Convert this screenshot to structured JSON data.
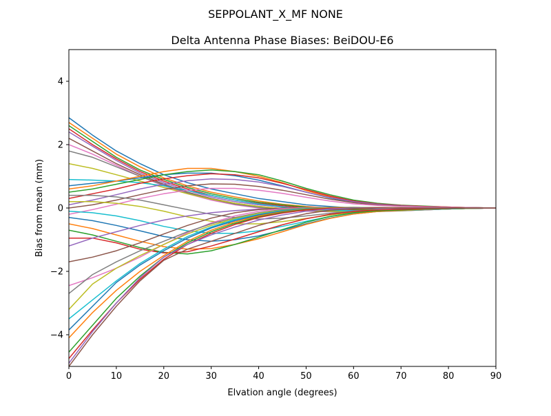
{
  "chart_data": {
    "type": "line",
    "suptitle": "SEPPOLANT_X_MF  NONE",
    "title": "Delta Antenna Phase Biases: BeiDOU-E6",
    "xlabel": "Elvation angle (degrees)",
    "ylabel": "Bias from mean (mm)",
    "xlim": [
      0,
      90
    ],
    "ylim": [
      -5,
      5
    ],
    "xticks": [
      0,
      10,
      20,
      30,
      40,
      50,
      60,
      70,
      80,
      90
    ],
    "yticks": [
      -4,
      -2,
      0,
      2,
      4
    ],
    "xtick_labels": [
      "0",
      "10",
      "20",
      "30",
      "40",
      "50",
      "60",
      "70",
      "80",
      "90"
    ],
    "ytick_labels": [
      "−4",
      "−2",
      "0",
      "2",
      "4"
    ],
    "grid": false,
    "legend": "none",
    "color_cycle": [
      "#1f77b4",
      "#ff7f0e",
      "#2ca02c",
      "#d62728",
      "#9467bd",
      "#8c564b",
      "#e377c2",
      "#7f7f7f",
      "#bcbd22",
      "#17becf"
    ],
    "x": [
      0,
      5,
      10,
      15,
      20,
      25,
      30,
      35,
      40,
      45,
      50,
      55,
      60,
      65,
      70,
      75,
      80,
      85,
      90
    ],
    "series": [
      {
        "values": [
          2.85,
          2.3,
          1.8,
          1.4,
          1.05,
          0.8,
          0.6,
          0.45,
          0.3,
          0.2,
          0.1,
          0.05,
          0.0,
          -0.05,
          -0.05,
          -0.03,
          -0.02,
          -0.01,
          0.0
        ]
      },
      {
        "values": [
          2.7,
          2.2,
          1.7,
          1.3,
          0.95,
          0.7,
          0.5,
          0.35,
          0.22,
          0.12,
          0.05,
          0.0,
          -0.04,
          -0.06,
          -0.06,
          -0.04,
          -0.02,
          -0.01,
          0.0
        ]
      },
      {
        "values": [
          2.6,
          2.1,
          1.6,
          1.2,
          0.9,
          0.65,
          0.45,
          0.3,
          0.18,
          0.1,
          0.03,
          -0.02,
          -0.05,
          -0.07,
          -0.06,
          -0.04,
          -0.02,
          -0.01,
          0.0
        ]
      },
      {
        "values": [
          2.5,
          2.0,
          1.55,
          1.15,
          0.85,
          0.6,
          0.4,
          0.25,
          0.15,
          0.07,
          0.0,
          -0.04,
          -0.07,
          -0.08,
          -0.07,
          -0.05,
          -0.03,
          -0.01,
          0.0
        ]
      },
      {
        "values": [
          2.4,
          1.95,
          1.5,
          1.1,
          0.8,
          0.55,
          0.35,
          0.2,
          0.1,
          0.03,
          -0.02,
          -0.05,
          -0.08,
          -0.09,
          -0.08,
          -0.05,
          -0.03,
          -0.01,
          0.0
        ]
      },
      {
        "values": [
          2.2,
          1.8,
          1.4,
          1.05,
          0.75,
          0.5,
          0.3,
          0.15,
          0.05,
          -0.02,
          -0.06,
          -0.09,
          -0.1,
          -0.1,
          -0.08,
          -0.06,
          -0.03,
          -0.01,
          0.0
        ]
      },
      {
        "values": [
          2.0,
          1.7,
          1.35,
          1.0,
          0.7,
          0.45,
          0.25,
          0.1,
          0.0,
          -0.06,
          -0.1,
          -0.12,
          -0.12,
          -0.11,
          -0.09,
          -0.06,
          -0.03,
          -0.01,
          0.0
        ]
      },
      {
        "values": [
          1.8,
          1.6,
          1.3,
          1.0,
          0.72,
          0.48,
          0.28,
          0.12,
          0.02,
          -0.05,
          -0.09,
          -0.11,
          -0.12,
          -0.11,
          -0.09,
          -0.06,
          -0.03,
          -0.01,
          0.0
        ]
      },
      {
        "values": [
          1.4,
          1.25,
          1.05,
          0.85,
          0.65,
          0.45,
          0.28,
          0.15,
          0.05,
          -0.02,
          -0.07,
          -0.1,
          -0.11,
          -0.1,
          -0.08,
          -0.05,
          -0.03,
          -0.01,
          0.0
        ]
      },
      {
        "values": [
          0.9,
          0.88,
          0.85,
          0.8,
          0.7,
          0.55,
          0.4,
          0.25,
          0.13,
          0.04,
          -0.03,
          -0.07,
          -0.09,
          -0.09,
          -0.07,
          -0.05,
          -0.03,
          -0.01,
          0.0
        ]
      },
      {
        "values": [
          0.7,
          0.78,
          0.85,
          0.95,
          1.05,
          1.1,
          1.1,
          1.02,
          0.88,
          0.7,
          0.5,
          0.32,
          0.18,
          0.1,
          0.06,
          0.04,
          0.02,
          0.01,
          0.0
        ]
      },
      {
        "values": [
          0.6,
          0.7,
          0.85,
          1.0,
          1.15,
          1.25,
          1.25,
          1.15,
          1.0,
          0.8,
          0.55,
          0.35,
          0.2,
          0.12,
          0.08,
          0.05,
          0.03,
          0.01,
          0.0
        ]
      },
      {
        "values": [
          0.5,
          0.6,
          0.75,
          0.9,
          1.05,
          1.15,
          1.2,
          1.15,
          1.05,
          0.85,
          0.62,
          0.42,
          0.25,
          0.15,
          0.09,
          0.06,
          0.03,
          0.01,
          0.0
        ]
      },
      {
        "values": [
          0.3,
          0.45,
          0.6,
          0.78,
          0.92,
          1.02,
          1.08,
          1.05,
          0.95,
          0.78,
          0.58,
          0.38,
          0.22,
          0.13,
          0.08,
          0.05,
          0.03,
          0.01,
          0.0
        ]
      },
      {
        "values": [
          0.1,
          0.25,
          0.42,
          0.6,
          0.75,
          0.86,
          0.92,
          0.9,
          0.82,
          0.68,
          0.5,
          0.33,
          0.2,
          0.12,
          0.07,
          0.04,
          0.02,
          0.01,
          0.0
        ]
      },
      {
        "values": [
          0.0,
          0.1,
          0.25,
          0.42,
          0.58,
          0.7,
          0.76,
          0.75,
          0.68,
          0.56,
          0.42,
          0.28,
          0.17,
          0.1,
          0.06,
          0.04,
          0.02,
          0.01,
          0.0
        ]
      },
      {
        "values": [
          -0.2,
          -0.05,
          0.12,
          0.3,
          0.45,
          0.56,
          0.62,
          0.62,
          0.56,
          0.46,
          0.34,
          0.22,
          0.13,
          0.08,
          0.05,
          0.03,
          0.02,
          0.01,
          0.0
        ]
      },
      {
        "values": [
          0.4,
          0.4,
          0.35,
          0.25,
          0.1,
          -0.05,
          -0.2,
          -0.3,
          -0.35,
          -0.32,
          -0.25,
          -0.17,
          -0.1,
          -0.06,
          -0.04,
          -0.02,
          -0.01,
          0.0,
          0.0
        ]
      },
      {
        "values": [
          0.2,
          0.2,
          0.15,
          0.05,
          -0.1,
          -0.28,
          -0.42,
          -0.5,
          -0.5,
          -0.43,
          -0.33,
          -0.22,
          -0.13,
          -0.08,
          -0.05,
          -0.03,
          -0.01,
          0.0,
          0.0
        ]
      },
      {
        "values": [
          -0.1,
          -0.15,
          -0.25,
          -0.4,
          -0.58,
          -0.72,
          -0.8,
          -0.8,
          -0.72,
          -0.58,
          -0.42,
          -0.27,
          -0.16,
          -0.1,
          -0.06,
          -0.04,
          -0.02,
          -0.01,
          0.0
        ]
      },
      {
        "values": [
          -0.3,
          -0.4,
          -0.55,
          -0.72,
          -0.9,
          -1.0,
          -1.05,
          -1.0,
          -0.88,
          -0.7,
          -0.5,
          -0.32,
          -0.19,
          -0.11,
          -0.07,
          -0.04,
          -0.02,
          -0.01,
          0.0
        ]
      },
      {
        "values": [
          -0.5,
          -0.65,
          -0.85,
          -1.05,
          -1.22,
          -1.3,
          -1.28,
          -1.15,
          -0.97,
          -0.75,
          -0.52,
          -0.33,
          -0.19,
          -0.11,
          -0.07,
          -0.04,
          -0.02,
          -0.01,
          0.0
        ]
      },
      {
        "values": [
          -0.7,
          -0.85,
          -1.05,
          -1.25,
          -1.4,
          -1.45,
          -1.35,
          -1.15,
          -0.92,
          -0.68,
          -0.45,
          -0.27,
          -0.15,
          -0.09,
          -0.06,
          -0.03,
          -0.02,
          -0.01,
          0.0
        ]
      },
      {
        "values": [
          -0.95,
          -0.95,
          -1.1,
          -1.3,
          -1.42,
          -1.38,
          -1.2,
          -0.98,
          -0.75,
          -0.53,
          -0.34,
          -0.2,
          -0.11,
          -0.06,
          -0.04,
          -0.02,
          -0.01,
          0.0,
          0.0
        ]
      },
      {
        "values": [
          -1.2,
          -0.95,
          -0.75,
          -0.55,
          -0.38,
          -0.25,
          -0.15,
          -0.08,
          -0.04,
          -0.02,
          -0.01,
          -0.01,
          -0.01,
          -0.01,
          -0.01,
          0.0,
          0.0,
          0.0,
          0.0
        ]
      },
      {
        "values": [
          -1.7,
          -1.55,
          -1.35,
          -1.1,
          -0.82,
          -0.55,
          -0.32,
          -0.15,
          -0.05,
          0.0,
          0.02,
          0.02,
          0.01,
          0.01,
          0.0,
          0.0,
          0.0,
          0.0,
          0.0
        ]
      },
      {
        "values": [
          -2.45,
          -2.2,
          -1.9,
          -1.55,
          -1.15,
          -0.78,
          -0.47,
          -0.25,
          -0.1,
          -0.02,
          0.01,
          0.02,
          0.02,
          0.01,
          0.01,
          0.0,
          0.0,
          0.0,
          0.0
        ]
      },
      {
        "values": [
          -2.7,
          -2.1,
          -1.7,
          -1.35,
          -1.05,
          -0.75,
          -0.5,
          -0.3,
          -0.15,
          -0.05,
          0.0,
          0.02,
          0.02,
          0.01,
          0.01,
          0.0,
          0.0,
          0.0,
          0.0
        ]
      },
      {
        "values": [
          -3.2,
          -2.4,
          -1.9,
          -1.5,
          -1.15,
          -0.82,
          -0.55,
          -0.33,
          -0.17,
          -0.07,
          -0.01,
          0.01,
          0.02,
          0.01,
          0.01,
          0.0,
          0.0,
          0.0,
          0.0
        ]
      },
      {
        "values": [
          -3.5,
          -2.9,
          -2.3,
          -1.75,
          -1.3,
          -0.9,
          -0.6,
          -0.36,
          -0.2,
          -0.08,
          -0.02,
          0.0,
          0.01,
          0.01,
          0.0,
          0.0,
          0.0,
          0.0,
          0.0
        ]
      },
      {
        "values": [
          -3.85,
          -3.1,
          -2.35,
          -1.8,
          -1.35,
          -0.95,
          -0.63,
          -0.4,
          -0.22,
          -0.1,
          -0.03,
          0.0,
          0.01,
          0.01,
          0.0,
          0.0,
          0.0,
          0.0,
          0.0
        ]
      },
      {
        "values": [
          -4.1,
          -3.3,
          -2.6,
          -2.0,
          -1.5,
          -1.05,
          -0.7,
          -0.44,
          -0.25,
          -0.12,
          -0.04,
          0.0,
          0.01,
          0.01,
          0.0,
          0.0,
          0.0,
          0.0,
          0.0
        ]
      },
      {
        "values": [
          -4.55,
          -3.7,
          -2.85,
          -2.15,
          -1.55,
          -1.1,
          -0.75,
          -0.48,
          -0.28,
          -0.14,
          -0.05,
          -0.01,
          0.01,
          0.01,
          0.0,
          0.0,
          0.0,
          0.0,
          0.0
        ]
      },
      {
        "values": [
          -4.75,
          -3.85,
          -3.0,
          -2.25,
          -1.62,
          -1.15,
          -0.8,
          -0.52,
          -0.3,
          -0.16,
          -0.06,
          -0.01,
          0.0,
          0.01,
          0.0,
          0.0,
          0.0,
          0.0,
          0.0
        ]
      },
      {
        "values": [
          -4.9,
          -3.9,
          -3.0,
          -2.2,
          -1.55,
          -1.15,
          -0.85,
          -0.6,
          -0.38,
          -0.22,
          -0.1,
          -0.03,
          0.0,
          0.0,
          0.0,
          0.0,
          0.0,
          0.0,
          0.0
        ]
      },
      {
        "values": [
          -5.0,
          -4.0,
          -3.1,
          -2.3,
          -1.65,
          -1.3,
          -1.05,
          -0.8,
          -0.55,
          -0.35,
          -0.18,
          -0.07,
          -0.02,
          0.0,
          0.0,
          0.0,
          0.0,
          0.0,
          0.0
        ]
      }
    ]
  }
}
